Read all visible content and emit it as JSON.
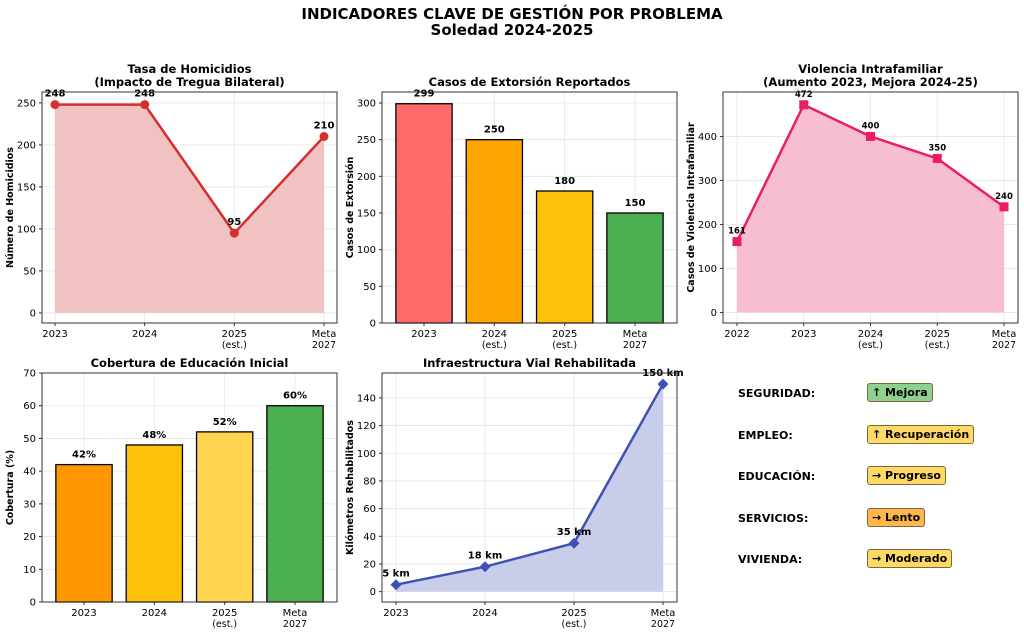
{
  "title": "INDICADORES CLAVE DE GESTIÓN POR PROBLEMA",
  "subtitle": "Soledad 2024-2025",
  "chart_data": [
    {
      "type": "line",
      "title": "Tasa de Homicidios",
      "subtitle": "(Impacto de Tregua Bilateral)",
      "ylabel": "Número de Homicidios",
      "xlabel": "",
      "categories": [
        "2023",
        "2024",
        "2025|(est.)",
        "Meta|2027"
      ],
      "values": [
        248,
        248,
        95,
        210
      ],
      "labels": [
        "248",
        "248",
        "95",
        "210"
      ],
      "ylim": [
        -12,
        263
      ],
      "yticks": [
        0,
        50,
        100,
        150,
        200,
        250
      ],
      "marker": "circle",
      "color": "#d32f2f",
      "fill": "#efbfbf",
      "grid": true
    },
    {
      "type": "bar",
      "title": "Casos de Extorsión Reportados",
      "subtitle": "",
      "ylabel": "Casos de Extorsión",
      "xlabel": "",
      "categories": [
        "2023",
        "2024|(est.)",
        "2025|(est.)",
        "Meta|2027"
      ],
      "values": [
        299,
        250,
        180,
        150
      ],
      "labels": [
        "299",
        "250",
        "180",
        "150"
      ],
      "ylim": [
        0,
        315
      ],
      "yticks": [
        0,
        50,
        100,
        150,
        200,
        250,
        300
      ],
      "colors": [
        "#ff6b6b",
        "#ffa500",
        "#ffc107",
        "#4caf50"
      ],
      "grid": true
    },
    {
      "type": "line",
      "title": "Violencia Intrafamiliar",
      "subtitle": "(Aumento 2023, Mejora 2024-25)",
      "ylabel": "Casos de Violencia Intrafamiliar",
      "xlabel": "",
      "categories": [
        "2022",
        "2023",
        "2024|(est.)",
        "2025|(est.)",
        "Meta|2027"
      ],
      "values": [
        161,
        472,
        400,
        350,
        240
      ],
      "labels": [
        "161",
        "472",
        "400",
        "350",
        "240"
      ],
      "ylim": [
        -24,
        501
      ],
      "yticks": [
        0,
        100,
        200,
        300,
        400
      ],
      "marker": "square",
      "color": "#e91e63",
      "fill": "#f7bbd0",
      "grid": true
    },
    {
      "type": "bar",
      "title": "Cobertura de Educación Inicial",
      "subtitle": "",
      "ylabel": "Cobertura (%)",
      "xlabel": "",
      "categories": [
        "2023",
        "2024",
        "2025|(est.)",
        "Meta|2027"
      ],
      "values": [
        42,
        48,
        52,
        60
      ],
      "labels": [
        "42%",
        "48%",
        "52%",
        "60%"
      ],
      "ylim": [
        0,
        70
      ],
      "yticks": [
        0,
        10,
        20,
        30,
        40,
        50,
        60,
        70
      ],
      "colors": [
        "#ff9800",
        "#ffc107",
        "#ffd54f",
        "#4caf50"
      ],
      "grid": true
    },
    {
      "type": "line",
      "title": "Infraestructura Vial Rehabilitada",
      "subtitle": "",
      "ylabel": "Kilómetros Rehabilitados",
      "xlabel": "",
      "categories": [
        "2023",
        "2024",
        "2025|(est.)",
        "Meta|2027"
      ],
      "values": [
        5,
        18,
        35,
        150
      ],
      "labels": [
        "5 km",
        "18 km",
        "35 km",
        "150 km"
      ],
      "ylim": [
        -7.5,
        158
      ],
      "yticks": [
        0,
        20,
        40,
        60,
        80,
        100,
        120,
        140
      ],
      "marker": "diamond",
      "color": "#3f51b5",
      "fill": "#c5cae9",
      "grid": true
    }
  ],
  "status_panel": [
    {
      "label": "SEGURIDAD:",
      "status": "↑ Mejora",
      "color": "#8fd08f"
    },
    {
      "label": "EMPLEO:",
      "status": "↑ Recuperación",
      "color": "#ffd966"
    },
    {
      "label": "EDUCACIÓN:",
      "status": "→ Progreso",
      "color": "#ffd966"
    },
    {
      "label": "SERVICIOS:",
      "status": "→ Lento",
      "color": "#ffb74d"
    },
    {
      "label": "VIVIENDA:",
      "status": "→ Moderado",
      "color": "#ffd966"
    }
  ]
}
